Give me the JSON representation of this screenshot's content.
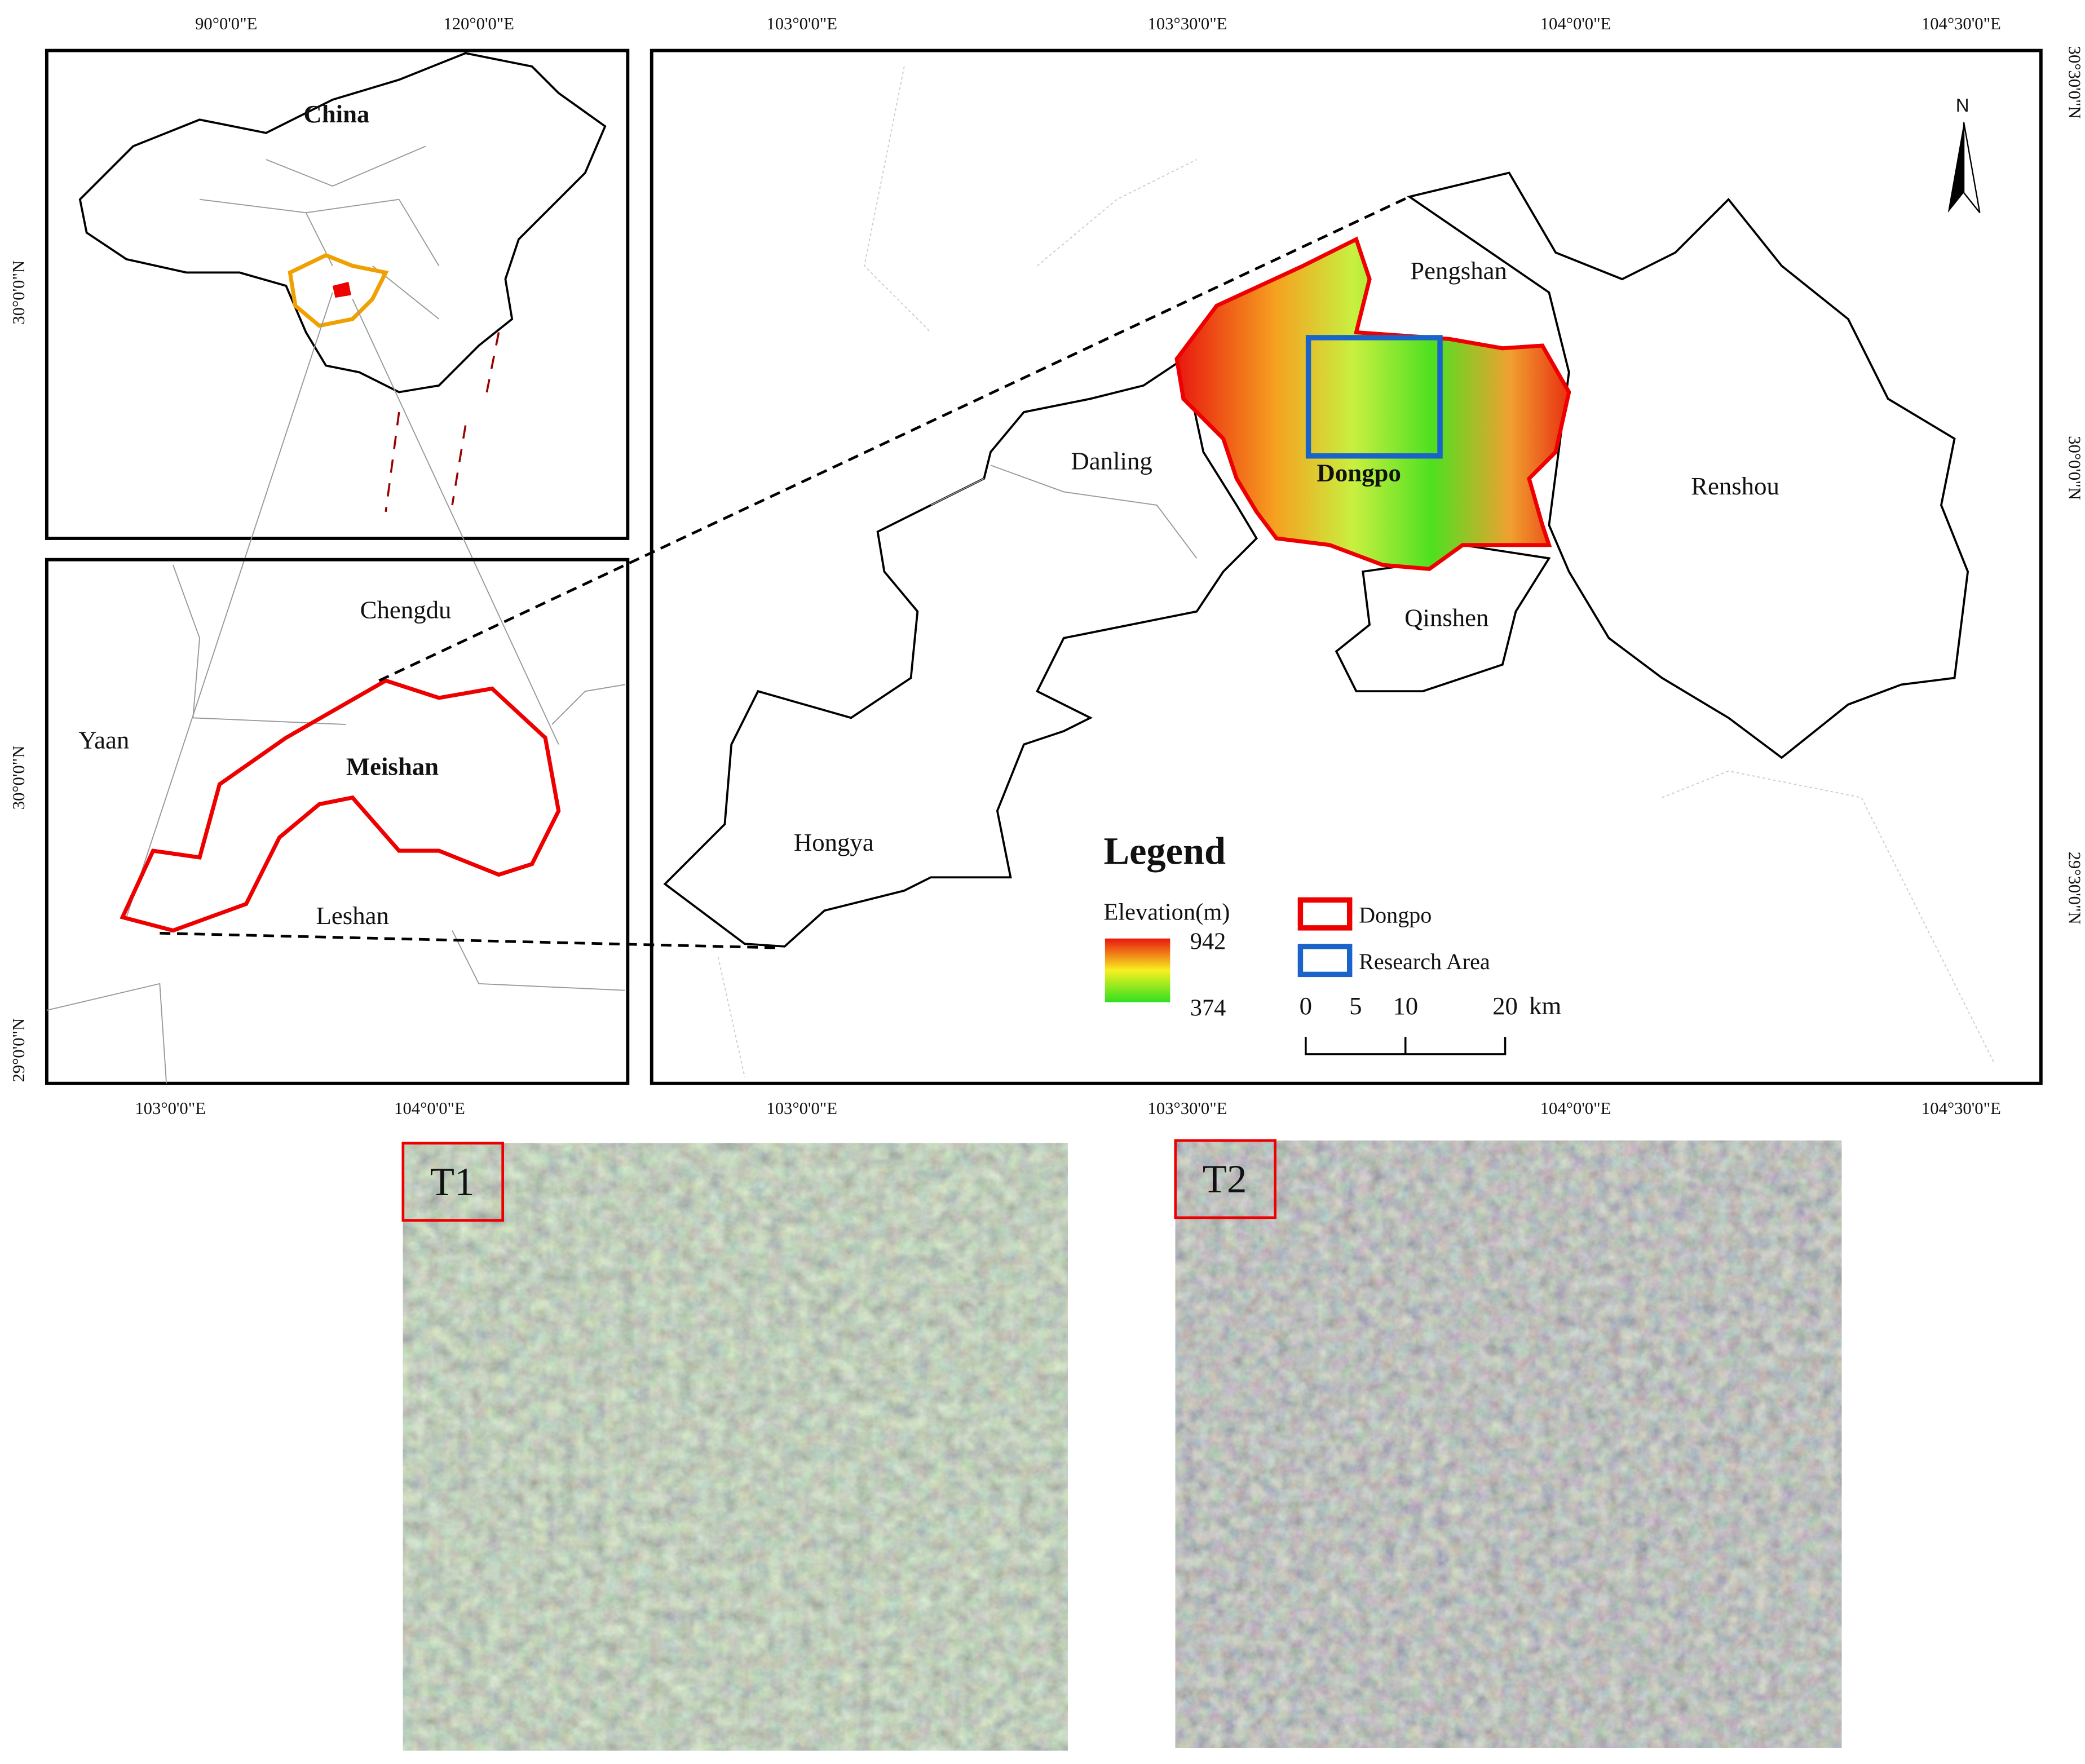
{
  "china_inset": {
    "title": "China",
    "lon_labels": [
      "90°0'0\"E",
      "120°0'0\"E"
    ],
    "lat_labels": [
      "30°0'0\"N"
    ]
  },
  "region_inset": {
    "labels": [
      "Chengdu",
      "Yaan",
      "Meishan",
      "Leshan"
    ],
    "lon_labels": [
      "103°0'0\"E",
      "104°0'0\"E"
    ],
    "lat_labels": [
      "30°0'0\"N",
      "29°0'0\"N"
    ]
  },
  "main_map": {
    "lon_labels": [
      "103°0'0\"E",
      "103°30'0\"E",
      "104°0'0\"E",
      "104°30'0\"E"
    ],
    "lat_labels": [
      "30°30'0\"N",
      "30°0'0\"N",
      "29°30'0\"N"
    ],
    "districts": [
      "Pengshan",
      "Danling",
      "Dongpo",
      "Renshou",
      "Qinshen",
      "Hongya"
    ],
    "north": "N"
  },
  "legend": {
    "title": "Legend",
    "elevation_title": "Elevation(m)",
    "elevation_max": 942,
    "elevation_min": 374,
    "items": [
      "Dongpo",
      "Research Area"
    ],
    "scale_labels": [
      0,
      5,
      10,
      20
    ],
    "scale_unit": "km"
  },
  "images": [
    "T1",
    "T2"
  ]
}
